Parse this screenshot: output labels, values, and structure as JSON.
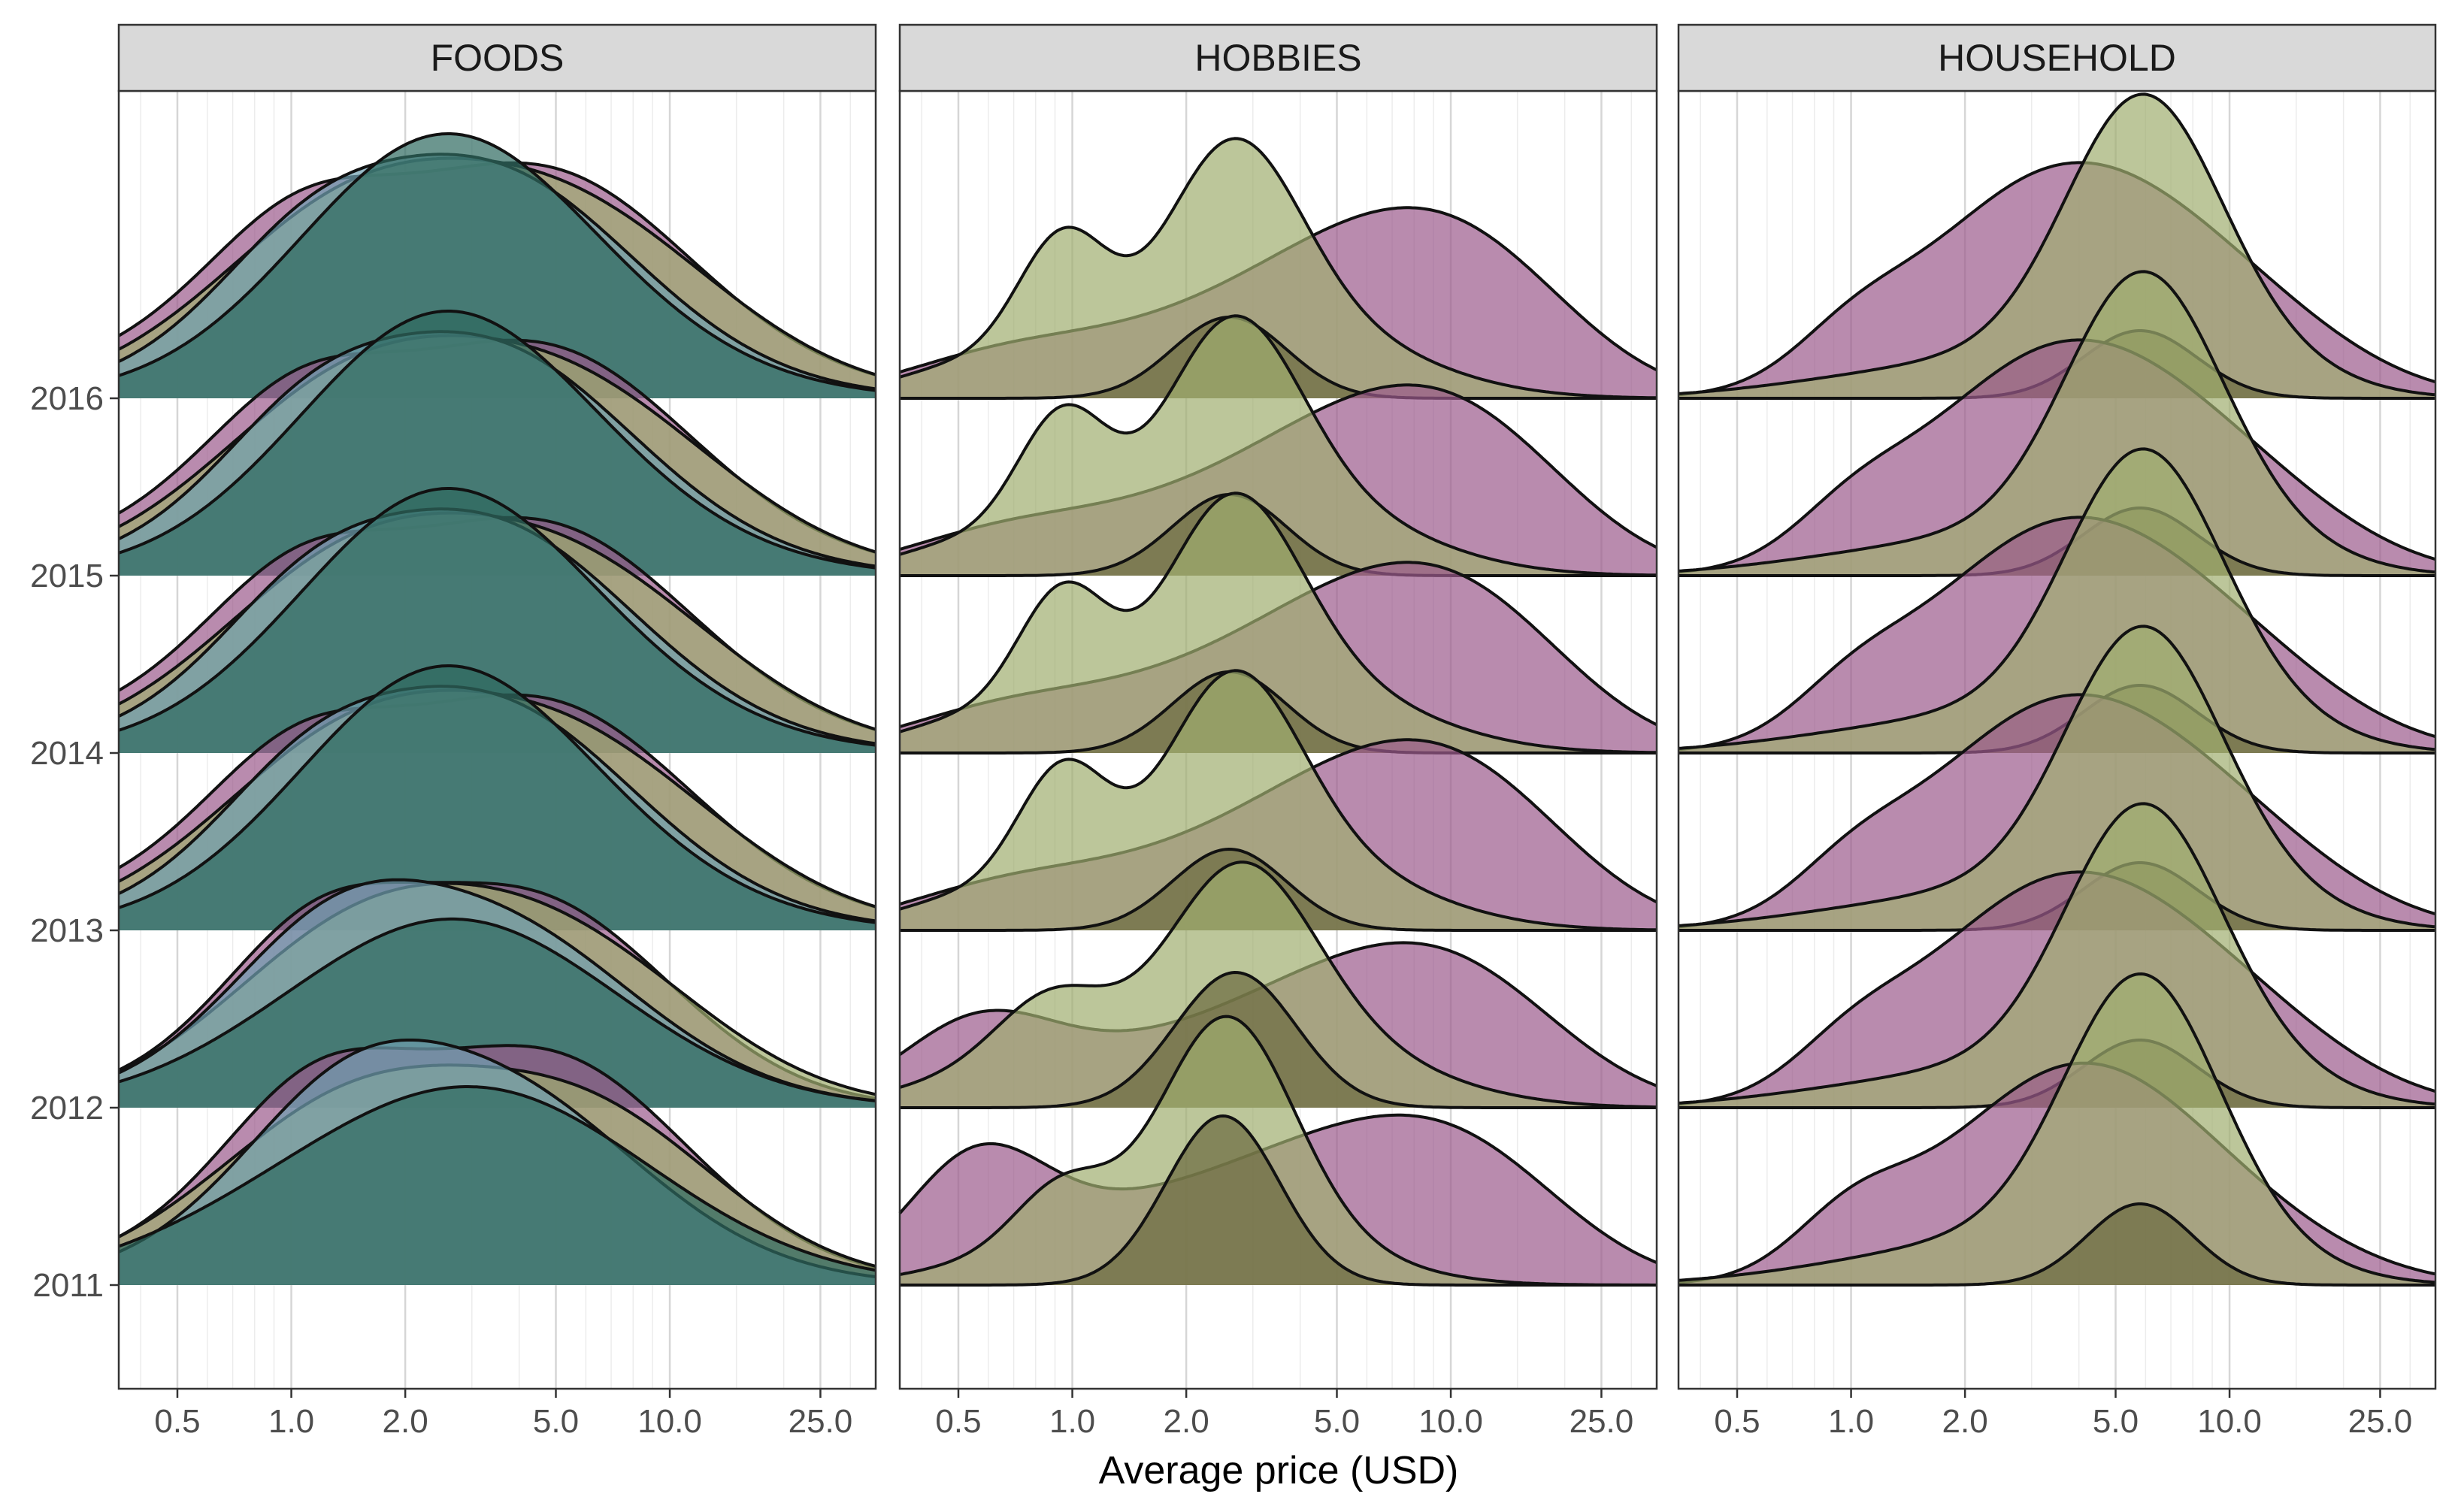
{
  "chart_data": {
    "type": "ridgeline",
    "xlabel": "Average price (USD)",
    "ylabel": "",
    "x_scale": "log10",
    "xlim": [
      0.35,
      35
    ],
    "x_ticks": [
      0.5,
      1.0,
      2.0,
      5.0,
      10.0,
      25.0
    ],
    "x_tick_labels": [
      "0.5",
      "1.0",
      "2.0",
      "5.0",
      "10.0",
      "25.0"
    ],
    "grid": true,
    "legend": "none",
    "years": [
      "2016",
      "2015",
      "2014",
      "2013",
      "2012",
      "2011"
    ],
    "panels": [
      {
        "title": "FOODS",
        "series": [
          {
            "color": "#9b5a8c",
            "components": [
              [
                1.0,
                0.22,
                0.09
              ],
              [
                2.4,
                0.55,
                0.26
              ],
              [
                5.0,
                0.3,
                0.08
              ],
              [
                8.0,
                0.3,
                0.05
              ]
            ],
            "by_year": {
              "2011": [
                [
                  1.1,
                  0.22,
                  0.11
                ],
                [
                  2.5,
                  0.5,
                  0.27
                ],
                [
                  5.5,
                  0.28,
                  0.08
                ],
                [
                  8.0,
                  0.3,
                  0.05
                ]
              ],
              "2012": [
                [
                  1.1,
                  0.22,
                  0.1
                ],
                [
                  2.3,
                  0.45,
                  0.25
                ],
                [
                  5.0,
                  0.28,
                  0.08
                ],
                [
                  8.0,
                  0.3,
                  0.05
                ]
              ]
            }
          },
          {
            "color": "#9fae6f",
            "components": [
              [
                1.2,
                0.3,
                0.08
              ],
              [
                2.7,
                0.5,
                0.27
              ],
              [
                7.0,
                0.35,
                0.09
              ]
            ],
            "by_year": {
              "2011": [
                [
                  1.2,
                  0.3,
                  0.07
                ],
                [
                  2.6,
                  0.5,
                  0.26
                ],
                [
                  7.5,
                  0.3,
                  0.09
                ]
              ],
              "2012": [
                [
                  1.2,
                  0.3,
                  0.07
                ],
                [
                  2.6,
                  0.45,
                  0.26
                ],
                [
                  7.0,
                  0.33,
                  0.08
                ]
              ]
            }
          },
          {
            "color": "#6f9fb0",
            "components": [
              [
                1.05,
                0.22,
                0.07
              ],
              [
                2.6,
                0.45,
                0.31
              ],
              [
                4.5,
                0.3,
                0.05
              ]
            ],
            "by_year": {
              "2011": [
                [
                  1.3,
                  0.25,
                  0.1
                ],
                [
                  2.6,
                  0.45,
                  0.27
                ],
                [
                  4.5,
                  0.3,
                  0.05
                ]
              ],
              "2012": [
                [
                  1.2,
                  0.25,
                  0.1
                ],
                [
                  2.5,
                  0.45,
                  0.25
                ],
                [
                  4.5,
                  0.3,
                  0.05
                ]
              ]
            }
          },
          {
            "color": "#2e6a5f",
            "components": [
              [
                2.3,
                0.35,
                0.2
              ],
              [
                2.8,
                0.45,
                0.14
              ],
              [
                4.0,
                0.4,
                0.06
              ]
            ],
            "by_year": {
              "2011": [
                [
                  2.6,
                  0.5,
                  0.26
                ],
                [
                  4.5,
                  0.35,
                  0.04
                ]
              ],
              "2012": [
                [
                  2.5,
                  0.45,
                  0.2
                ],
                [
                  3.0,
                  0.4,
                  0.08
                ]
              ]
            }
          }
        ]
      },
      {
        "title": "HOBBIES",
        "series": [
          {
            "color": "#9b5a8c",
            "components": [
              [
                0.55,
                0.25,
                0.03
              ],
              [
                1.0,
                0.3,
                0.05
              ],
              [
                2.5,
                0.3,
                0.03
              ],
              [
                5.0,
                0.35,
                0.14
              ],
              [
                9.0,
                0.3,
                0.12
              ],
              [
                14.0,
                0.25,
                0.06
              ]
            ],
            "by_year": {
              "2012": [
                [
                  0.55,
                  0.2,
                  0.1
                ],
                [
                  1.0,
                  0.3,
                  0.05
                ],
                [
                  2.6,
                  0.3,
                  0.03
                ],
                [
                  5.0,
                  0.35,
                  0.12
                ],
                [
                  9.0,
                  0.3,
                  0.1
                ],
                [
                  13.0,
                  0.25,
                  0.05
                ]
              ],
              "2011": [
                [
                  0.55,
                  0.18,
                  0.15
                ],
                [
                  1.0,
                  0.3,
                  0.07
                ],
                [
                  2.6,
                  0.3,
                  0.03
                ],
                [
                  4.5,
                  0.35,
                  0.13
                ],
                [
                  9.0,
                  0.3,
                  0.1
                ],
                [
                  13.0,
                  0.25,
                  0.06
                ]
              ]
            }
          },
          {
            "color": "#9fae6f",
            "components": [
              [
                0.55,
                0.2,
                0.05
              ],
              [
                0.95,
                0.12,
                0.2
              ],
              [
                2.6,
                0.18,
                0.3
              ],
              [
                4.0,
                0.3,
                0.1
              ]
            ],
            "by_year": {
              "2012": [
                [
                  0.55,
                  0.22,
                  0.04
                ],
                [
                  0.9,
                  0.15,
                  0.13
                ],
                [
                  2.7,
                  0.2,
                  0.3
                ],
                [
                  4.5,
                  0.3,
                  0.08
                ]
              ],
              "2011": [
                [
                  0.6,
                  0.2,
                  0.03
                ],
                [
                  0.95,
                  0.13,
                  0.12
                ],
                [
                  2.5,
                  0.18,
                  0.36
                ],
                [
                  4.0,
                  0.25,
                  0.05
                ]
              ]
            }
          },
          {
            "color": "#6b6a3e",
            "components": [
              [
                2.6,
                0.15,
                0.12
              ]
            ],
            "by_year": {
              "2012": [
                [
                  2.7,
                  0.16,
                  0.2
                ]
              ],
              "2011": [
                [
                  2.5,
                  0.15,
                  0.25
                ]
              ]
            }
          }
        ]
      },
      {
        "title": "HOUSEHOLD",
        "series": [
          {
            "color": "#9b5a8c",
            "components": [
              [
                1.0,
                0.15,
                0.05
              ],
              [
                2.3,
                0.3,
                0.08
              ],
              [
                3.9,
                0.35,
                0.24
              ],
              [
                8.0,
                0.3,
                0.08
              ],
              [
                15.0,
                0.25,
                0.03
              ]
            ],
            "by_year": {
              "2011": [
                [
                  1.0,
                  0.15,
                  0.07
                ],
                [
                  2.0,
                  0.3,
                  0.05
                ],
                [
                  4.0,
                  0.32,
                  0.26
                ],
                [
                  8.0,
                  0.3,
                  0.06
                ],
                [
                  15.0,
                  0.25,
                  0.02
                ]
              ]
            }
          },
          {
            "color": "#9fae6f",
            "components": [
              [
                1.0,
                0.3,
                0.02
              ],
              [
                2.8,
                0.3,
                0.05
              ],
              [
                5.8,
                0.2,
                0.36
              ],
              [
                9.0,
                0.25,
                0.08
              ]
            ],
            "by_year": {
              "2011": [
                [
                  1.0,
                  0.3,
                  0.02
                ],
                [
                  2.8,
                  0.3,
                  0.06
                ],
                [
                  5.8,
                  0.2,
                  0.38
                ],
                [
                  9.0,
                  0.25,
                  0.06
                ]
              ]
            }
          },
          {
            "color": "#6b6a3e",
            "components": [
              [
                5.8,
                0.15,
                0.1
              ]
            ],
            "by_year": {
              "2011": [
                [
                  5.8,
                  0.14,
                  0.12
                ]
              ]
            }
          }
        ]
      }
    ]
  }
}
